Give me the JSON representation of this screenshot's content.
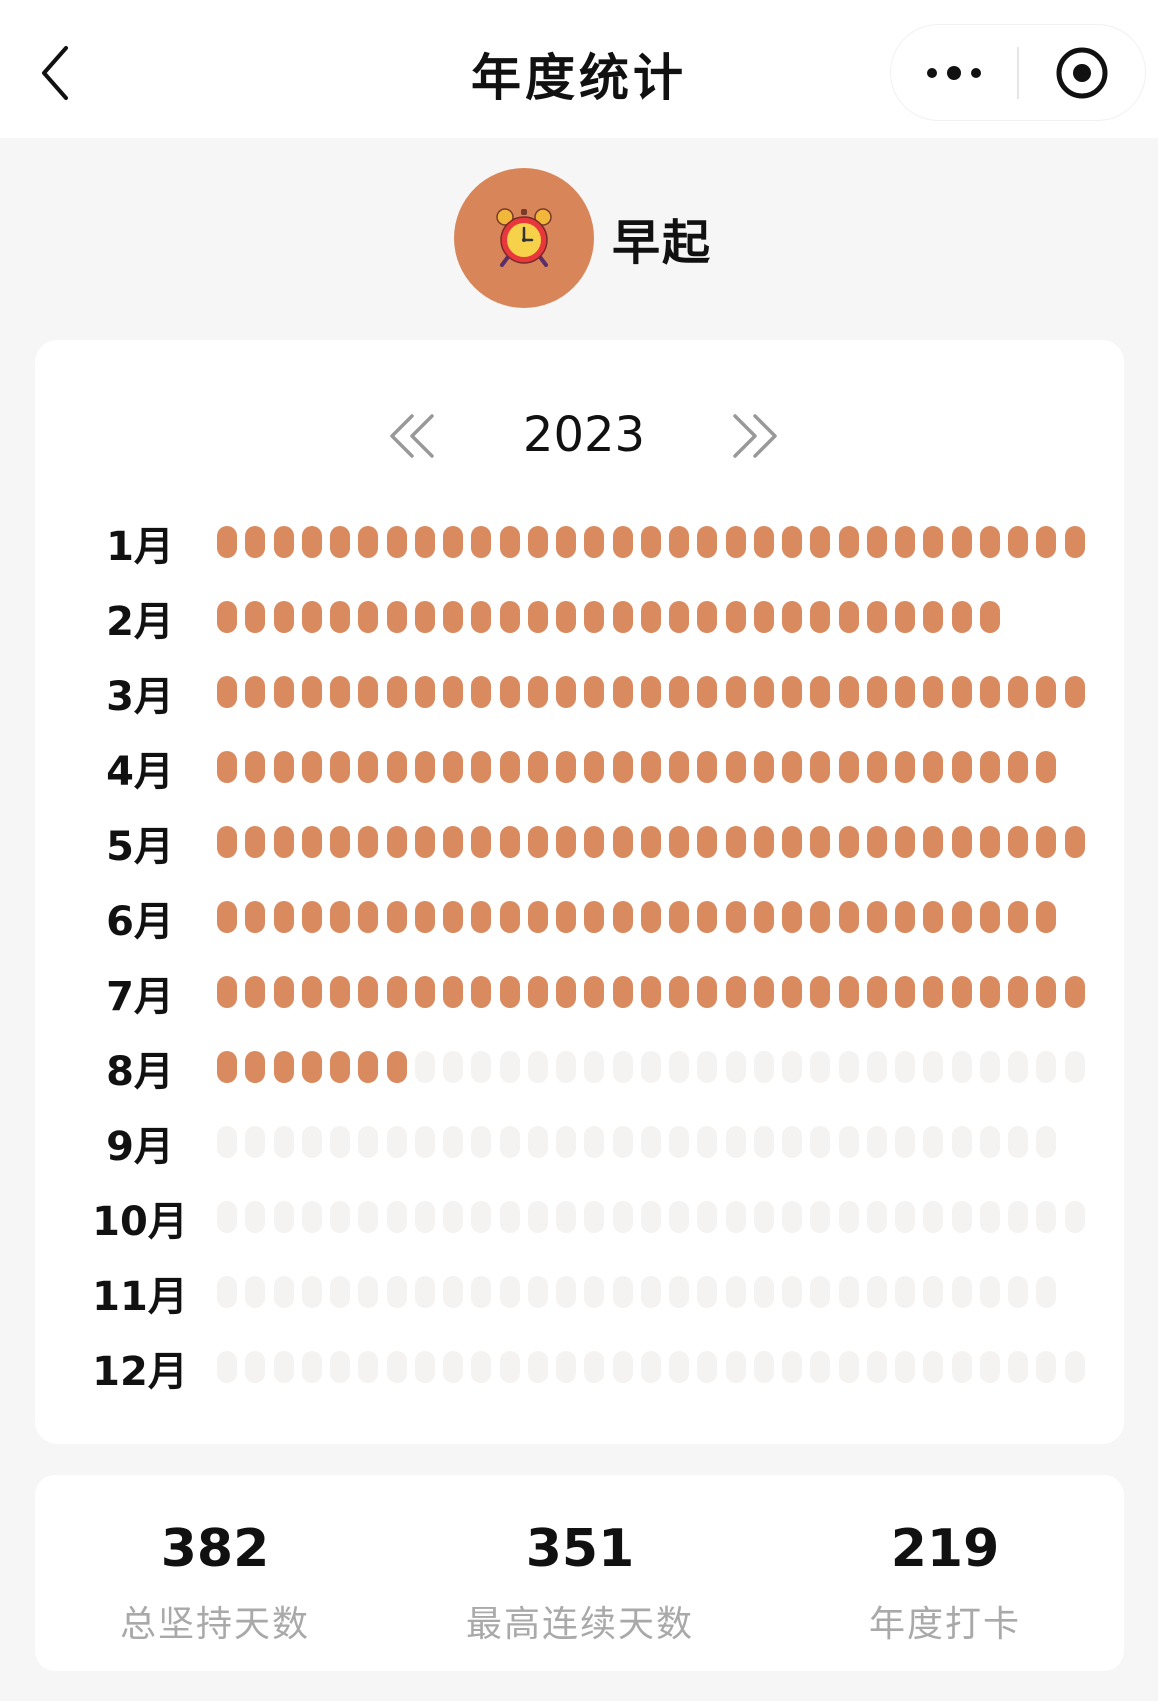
{
  "nav": {
    "title": "年度统计"
  },
  "habit": {
    "name": "早起",
    "icon": "alarm-clock-icon"
  },
  "calendar": {
    "year": "2023",
    "months": [
      {
        "label": "1月",
        "days": 31,
        "checked": 31
      },
      {
        "label": "2月",
        "days": 28,
        "checked": 28
      },
      {
        "label": "3月",
        "days": 31,
        "checked": 31
      },
      {
        "label": "4月",
        "days": 30,
        "checked": 30
      },
      {
        "label": "5月",
        "days": 31,
        "checked": 31
      },
      {
        "label": "6月",
        "days": 30,
        "checked": 30
      },
      {
        "label": "7月",
        "days": 31,
        "checked": 31
      },
      {
        "label": "8月",
        "days": 31,
        "checked": 7
      },
      {
        "label": "9月",
        "days": 30,
        "checked": 0
      },
      {
        "label": "10月",
        "days": 31,
        "checked": 0
      },
      {
        "label": "11月",
        "days": 30,
        "checked": 0
      },
      {
        "label": "12月",
        "days": 31,
        "checked": 0
      }
    ]
  },
  "stats": [
    {
      "value": "382",
      "label": "总坚持天数"
    },
    {
      "value": "351",
      "label": "最高连续天数"
    },
    {
      "value": "219",
      "label": "年度打卡"
    }
  ],
  "colors": {
    "accent": "#d98a5e",
    "avatar": "#d88659",
    "empty_dot": "#f5f3f1",
    "muted_text": "#a9a9a9",
    "page_bg": "#f6f6f6"
  }
}
